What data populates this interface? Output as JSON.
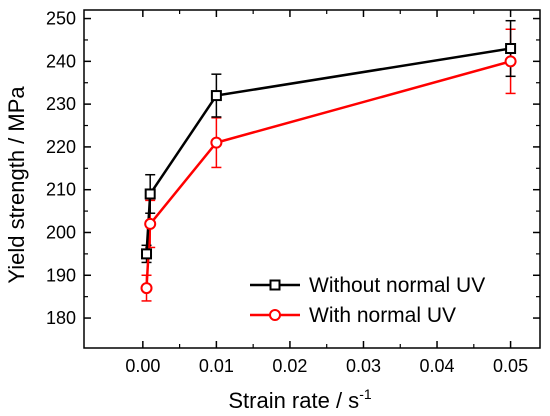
{
  "chart_data": {
    "type": "line",
    "xlabel": "Strain rate / s",
    "xlabel_superscript": "-1",
    "ylabel": "Yield strength / MPa",
    "xlim": [
      -0.008,
      0.054
    ],
    "ylim": [
      173,
      252
    ],
    "x_ticks": [
      0.0,
      0.01,
      0.02,
      0.03,
      0.04,
      0.05
    ],
    "x_tick_labels": [
      "0.00",
      "0.01",
      "0.02",
      "0.03",
      "0.04",
      "0.05"
    ],
    "y_ticks": [
      180,
      190,
      200,
      210,
      220,
      230,
      240,
      250
    ],
    "y_tick_labels": [
      "180",
      "190",
      "200",
      "210",
      "220",
      "230",
      "240",
      "250"
    ],
    "grid": false,
    "legend_position": "bottom-right",
    "series": [
      {
        "name": "Without normal UV",
        "color": "#000000",
        "marker": "square",
        "x": [
          0.0005,
          0.001,
          0.01,
          0.05
        ],
        "y": [
          195,
          209,
          232,
          243
        ],
        "error": [
          2,
          4.5,
          5,
          6.5
        ]
      },
      {
        "name": "With normal UV",
        "color": "#ff0000",
        "marker": "circle",
        "x": [
          0.0005,
          0.001,
          0.01,
          0.05
        ],
        "y": [
          187,
          202,
          221,
          240
        ],
        "error": [
          3,
          5.5,
          5.8,
          7.5
        ]
      }
    ]
  }
}
